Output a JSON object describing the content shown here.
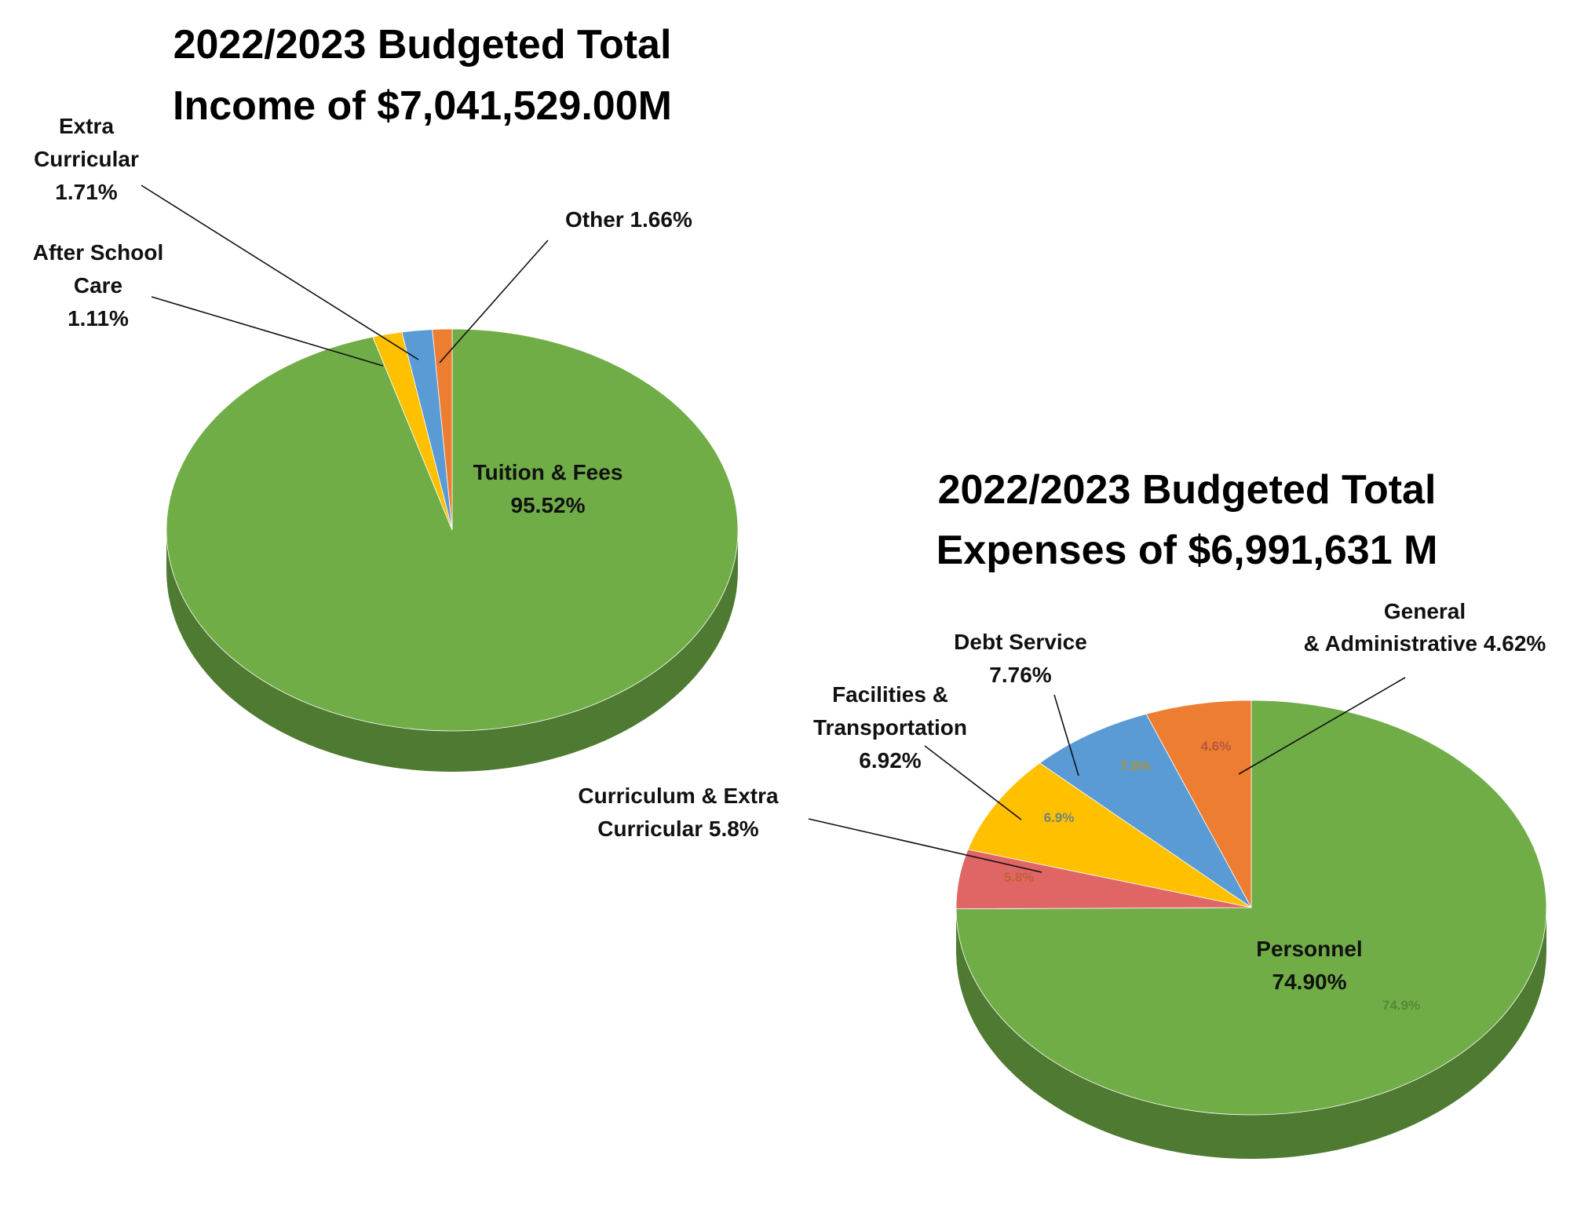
{
  "chart_data": [
    {
      "type": "pie",
      "title": [
        "2022/2023 Budgeted Total",
        "Income of $7,041,529.00M"
      ],
      "slices": [
        {
          "name": "Tuition & Fees",
          "value": 95.52,
          "label": [
            "Tuition & Fees",
            "95.52%"
          ],
          "color": "#70AD47",
          "side_color": "#4E7A32",
          "inner_label": ""
        },
        {
          "name": "After School Care",
          "value": 1.11,
          "label": [
            "After School",
            "Care",
            "1.11%"
          ],
          "color": "#ED7D31",
          "side_color": "#B65E22",
          "inner_label": ""
        },
        {
          "name": "Extra Curricular",
          "value": 1.71,
          "label": [
            "Extra",
            "Curricular",
            "1.71%"
          ],
          "color": "#5B9BD5",
          "side_color": "#3F73A0",
          "inner_label": ""
        },
        {
          "name": "Other",
          "value": 1.66,
          "label": [
            "Other 1.66%"
          ],
          "color": "#FFC000",
          "side_color": "#C29200",
          "inner_label": ""
        }
      ]
    },
    {
      "type": "pie",
      "title": [
        "2022/2023 Budgeted Total",
        "Expenses of $6,991,631 M"
      ],
      "slices": [
        {
          "name": "Personnel",
          "value": 74.9,
          "label": [
            "Personnel",
            "74.90%"
          ],
          "color": "#70AD47",
          "side_color": "#4E7A32",
          "inner_label": "74.9%"
        },
        {
          "name": "Curriculum & Extra Curricular",
          "value": 5.8,
          "label": [
            "Curriculum & Extra",
            "Curricular 5.8%"
          ],
          "color": "#ED7D31",
          "side_color": "#B65E22",
          "inner_label": "5.8%"
        },
        {
          "name": "Facilities & Transportation",
          "value": 6.92,
          "label": [
            "Facilities &",
            "Transportation",
            "6.92%"
          ],
          "color": "#5B9BD5",
          "side_color": "#3F73A0",
          "inner_label": "6.9%"
        },
        {
          "name": "Debt Service",
          "value": 7.76,
          "label": [
            "Debt Service",
            "7.76%"
          ],
          "color": "#FFC000",
          "side_color": "#C29200",
          "inner_label": "7.8%"
        },
        {
          "name": "General & Administrative",
          "value": 4.62,
          "label": [
            "General",
            "& Administrative 4.62%"
          ],
          "color": "#E06666",
          "side_color": "#A84848",
          "inner_label": "4.6%"
        }
      ]
    }
  ]
}
